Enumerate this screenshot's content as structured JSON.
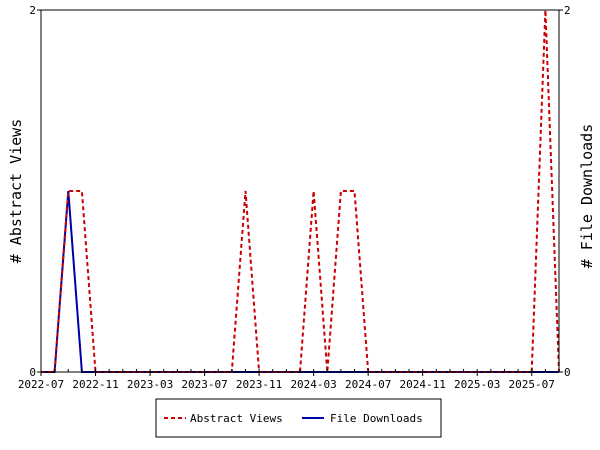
{
  "chart_data": {
    "type": "line",
    "title": "",
    "y_left_label": "# Abstract Views",
    "y_right_label": "# File Downloads",
    "y_left_ticks": [
      "0",
      "2"
    ],
    "y_right_ticks": [
      "0",
      "2"
    ],
    "ylim": [
      0,
      2
    ],
    "xlim": [
      "2022-07",
      "2025-09"
    ],
    "x_tick_labels": [
      "2022-07",
      "2022-11",
      "2023-03",
      "2023-07",
      "2023-11",
      "2024-03",
      "2024-07",
      "2024-11",
      "2025-03",
      "2025-07"
    ],
    "x": [
      "2022-07",
      "2022-08",
      "2022-09",
      "2022-10",
      "2022-11",
      "2022-12",
      "2023-01",
      "2023-02",
      "2023-03",
      "2023-04",
      "2023-05",
      "2023-06",
      "2023-07",
      "2023-08",
      "2023-09",
      "2023-10",
      "2023-11",
      "2023-12",
      "2024-01",
      "2024-02",
      "2024-03",
      "2024-04",
      "2024-05",
      "2024-06",
      "2024-07",
      "2024-08",
      "2024-09",
      "2024-10",
      "2024-11",
      "2024-12",
      "2025-01",
      "2025-02",
      "2025-03",
      "2025-04",
      "2025-05",
      "2025-06",
      "2025-07",
      "2025-08",
      "2025-09"
    ],
    "series": [
      {
        "name": "Abstract Views",
        "axis": "left",
        "color": "#cc0000",
        "dash": "dashed",
        "values": [
          0,
          0,
          1,
          1,
          0,
          0,
          0,
          0,
          0,
          0,
          0,
          0,
          0,
          0,
          0,
          1,
          0,
          0,
          0,
          0,
          1,
          0,
          1,
          1,
          0,
          0,
          0,
          0,
          0,
          0,
          0,
          0,
          0,
          0,
          0,
          0,
          0,
          2,
          0
        ]
      },
      {
        "name": "File Downloads",
        "axis": "right",
        "color": "#0000aa",
        "dash": "solid",
        "values": [
          0,
          0,
          1,
          0,
          0,
          0,
          0,
          0,
          0,
          0,
          0,
          0,
          0,
          0,
          0,
          0,
          0,
          0,
          0,
          0,
          0,
          0,
          0,
          0,
          0,
          0,
          0,
          0,
          0,
          0,
          0,
          0,
          0,
          0,
          0,
          0,
          0,
          0,
          0
        ]
      }
    ],
    "grid": false,
    "legend_position": "bottom"
  }
}
